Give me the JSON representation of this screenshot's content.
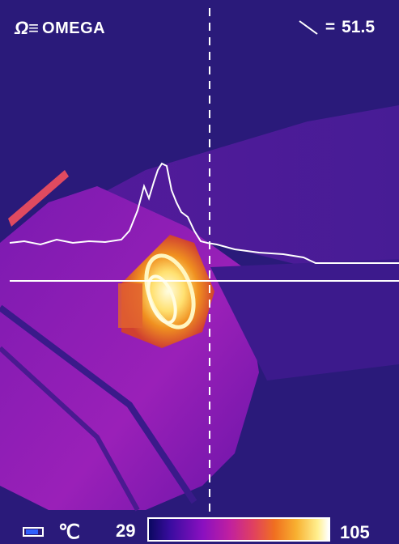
{
  "header": {
    "brand_symbol": "Ω≡",
    "brand_name": "OMEGA",
    "line_value_prefix": "=",
    "line_value": "51.5"
  },
  "status_bar": {
    "unit": "℃",
    "range_min": "29",
    "range_max": "105"
  },
  "colors": {
    "background_cold": "#2a1a7a",
    "overlay_white": "#ffffff",
    "battery_fill": "#3060ff"
  },
  "icons": {
    "line_tool": "diagonal-line-icon",
    "battery": "battery-icon",
    "logo": "omega-logo-icon"
  }
}
